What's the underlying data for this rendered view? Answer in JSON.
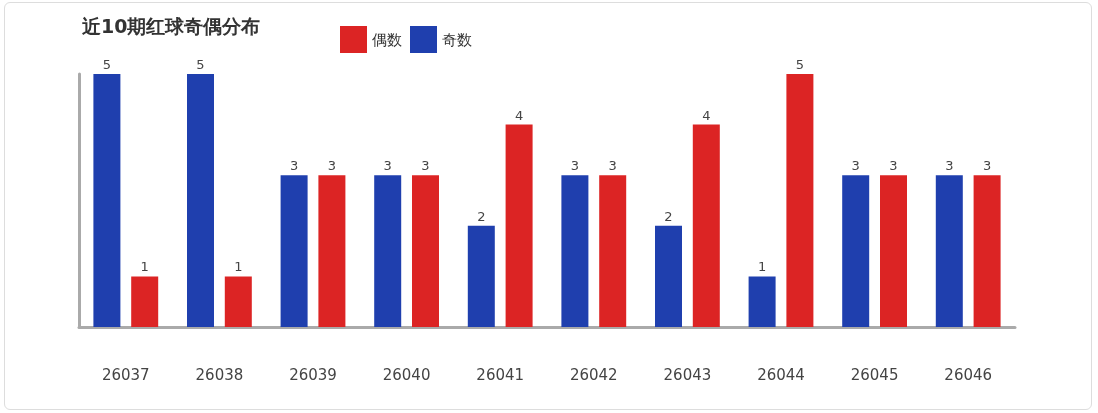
{
  "chart_data": {
    "type": "bar",
    "title": "近10期红球奇偶分布",
    "categories": [
      "26037",
      "26038",
      "26039",
      "26040",
      "26041",
      "26042",
      "26043",
      "26044",
      "26045",
      "26046"
    ],
    "series": [
      {
        "name": "奇数",
        "color": "#1f3fae",
        "values": [
          5,
          5,
          3,
          3,
          2,
          3,
          2,
          1,
          3,
          3
        ]
      },
      {
        "name": "偶数",
        "color": "#dc2424",
        "values": [
          1,
          1,
          3,
          3,
          4,
          3,
          4,
          5,
          3,
          3
        ]
      }
    ],
    "ylim": [
      0,
      5
    ],
    "data_labels": true,
    "tick_labels": "x",
    "grid": false,
    "legend": "top left"
  }
}
